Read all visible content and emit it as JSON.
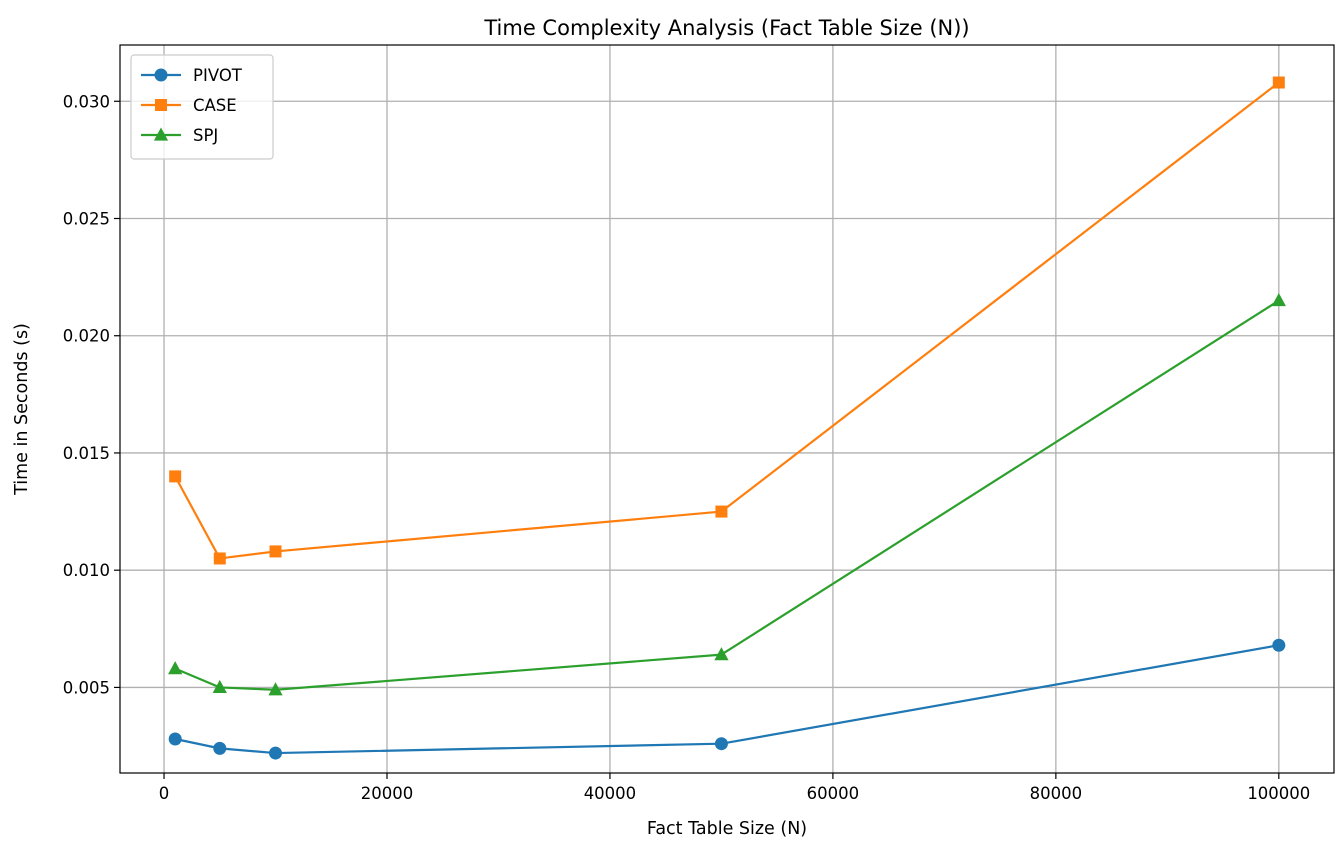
{
  "chart_data": {
    "type": "line",
    "title": "Time Complexity Analysis (Fact Table Size (N))",
    "xlabel": "Fact Table Size (N)",
    "ylabel": "Time in Seconds (s)",
    "x": [
      1000,
      5000,
      10000,
      50000,
      100000
    ],
    "xlim": [
      -3950,
      104950
    ],
    "ylim": [
      0.00135,
      0.0324
    ],
    "xticks": [
      0,
      20000,
      40000,
      60000,
      80000,
      100000
    ],
    "xtick_labels": [
      "0",
      "20000",
      "40000",
      "60000",
      "80000",
      "100000"
    ],
    "yticks": [
      0.005,
      0.01,
      0.015,
      0.02,
      0.025,
      0.03
    ],
    "ytick_labels": [
      "0.005",
      "0.010",
      "0.015",
      "0.020",
      "0.025",
      "0.030"
    ],
    "grid": true,
    "legend_position": "top-left",
    "series": [
      {
        "name": "PIVOT",
        "marker": "circle",
        "color": "#1f77b4",
        "values": [
          0.0028,
          0.0024,
          0.0022,
          0.0026,
          0.0068
        ]
      },
      {
        "name": "CASE",
        "marker": "square",
        "color": "#ff7f0e",
        "values": [
          0.014,
          0.0105,
          0.0108,
          0.0125,
          0.0308
        ]
      },
      {
        "name": "SPJ",
        "marker": "triangle",
        "color": "#2ca02c",
        "values": [
          0.0058,
          0.005,
          0.0049,
          0.0064,
          0.0215
        ]
      }
    ]
  }
}
